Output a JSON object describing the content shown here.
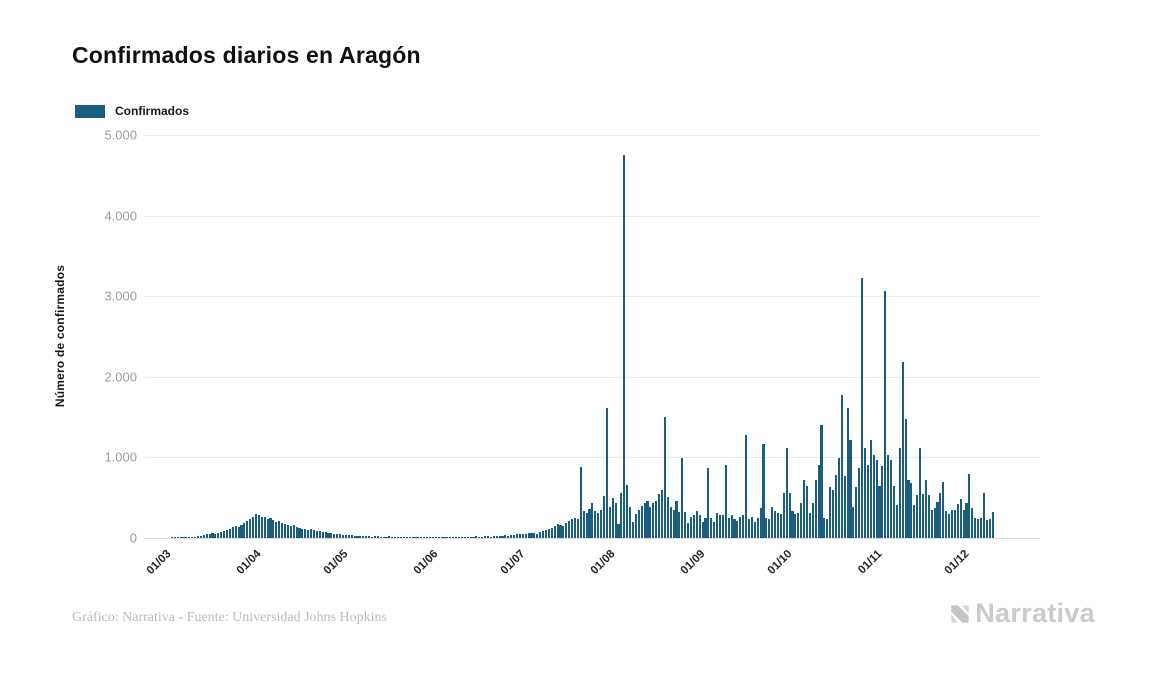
{
  "title": "Confirmados diarios en Aragón",
  "legend": {
    "label": "Confirmados",
    "swatch_color": "#1a5d7e"
  },
  "footer": {
    "credit": "Gráfico: Narrativa - Fuente: Universidad Johns Hopkins",
    "brand": "Narrativa"
  },
  "chart_data": {
    "type": "bar",
    "title": "Confirmados diarios en Aragón",
    "xlabel": "",
    "ylabel": "Número de confirmados",
    "series_name": "Confirmados",
    "series_color": "#1a5d7e",
    "grid": true,
    "legend_position": "top-left",
    "ylim": [
      0,
      5000
    ],
    "y_tick_labels": [
      "5.000",
      "4.000",
      "3.000",
      "2.000",
      "1.000",
      "0"
    ],
    "y_tick_values": [
      5000,
      4000,
      3000,
      2000,
      1000,
      0
    ],
    "x_tick_labels": [
      "01/03",
      "01/04",
      "01/05",
      "01/06",
      "01/07",
      "01/08",
      "01/09",
      "01/10",
      "01/11",
      "01/12"
    ],
    "x_tick_day_index": [
      0,
      31,
      61,
      92,
      122,
      153,
      184,
      214,
      245,
      275
    ],
    "start_date": "2020-03-01",
    "notable_points": {
      "max_value": 4750,
      "max_value_date": "2020-08-06",
      "first_wave_peak": 295,
      "autumn_peaks": [
        3225,
        3065,
        2185
      ]
    },
    "values": [
      0,
      0,
      1,
      1,
      2,
      3,
      5,
      8,
      10,
      14,
      18,
      24,
      30,
      38,
      45,
      52,
      60,
      55,
      68,
      80,
      92,
      105,
      118,
      132,
      148,
      138,
      158,
      182,
      205,
      235,
      265,
      295,
      280,
      255,
      265,
      235,
      245,
      218,
      200,
      208,
      185,
      172,
      162,
      152,
      160,
      140,
      128,
      118,
      108,
      100,
      112,
      95,
      88,
      82,
      76,
      70,
      64,
      58,
      52,
      48,
      44,
      40,
      36,
      32,
      38,
      30,
      26,
      24,
      28,
      22,
      20,
      18,
      24,
      20,
      16,
      14,
      18,
      22,
      16,
      12,
      10,
      14,
      18,
      12,
      10,
      8,
      12,
      16,
      10,
      8,
      12,
      14,
      10,
      8,
      12,
      6,
      8,
      10,
      14,
      10,
      8,
      12,
      16,
      12,
      10,
      14,
      18,
      22,
      16,
      14,
      20,
      24,
      18,
      22,
      28,
      24,
      30,
      34,
      28,
      38,
      42,
      46,
      52,
      48,
      44,
      58,
      65,
      60,
      55,
      70,
      85,
      95,
      110,
      130,
      155,
      175,
      160,
      150,
      185,
      210,
      240,
      250,
      230,
      875,
      340,
      310,
      355,
      430,
      330,
      310,
      350,
      520,
      1610,
      385,
      495,
      430,
      180,
      555,
      4750,
      655,
      385,
      200,
      300,
      350,
      400,
      430,
      465,
      390,
      440,
      465,
      550,
      600,
      1500,
      505,
      385,
      350,
      465,
      320,
      990,
      320,
      185,
      260,
      285,
      330,
      285,
      200,
      250,
      870,
      250,
      200,
      310,
      280,
      290,
      905,
      250,
      280,
      230,
      205,
      260,
      280,
      1280,
      230,
      260,
      200,
      250,
      370,
      1165,
      250,
      240,
      380,
      335,
      310,
      300,
      560,
      1120,
      560,
      330,
      300,
      310,
      435,
      720,
      640,
      310,
      435,
      720,
      900,
      1400,
      250,
      230,
      635,
      590,
      780,
      990,
      1775,
      770,
      1610,
      1210,
      385,
      635,
      870,
      3225,
      1115,
      910,
      1210,
      1030,
      970,
      640,
      890,
      3065,
      1030,
      970,
      640,
      410,
      1115,
      2185,
      1475,
      720,
      680,
      410,
      535,
      1115,
      545,
      720,
      535,
      350,
      370,
      450,
      555,
      695,
      330,
      300,
      345,
      350,
      420,
      480,
      350,
      430,
      795,
      370,
      245,
      230,
      250,
      555,
      225,
      240,
      325
    ]
  }
}
